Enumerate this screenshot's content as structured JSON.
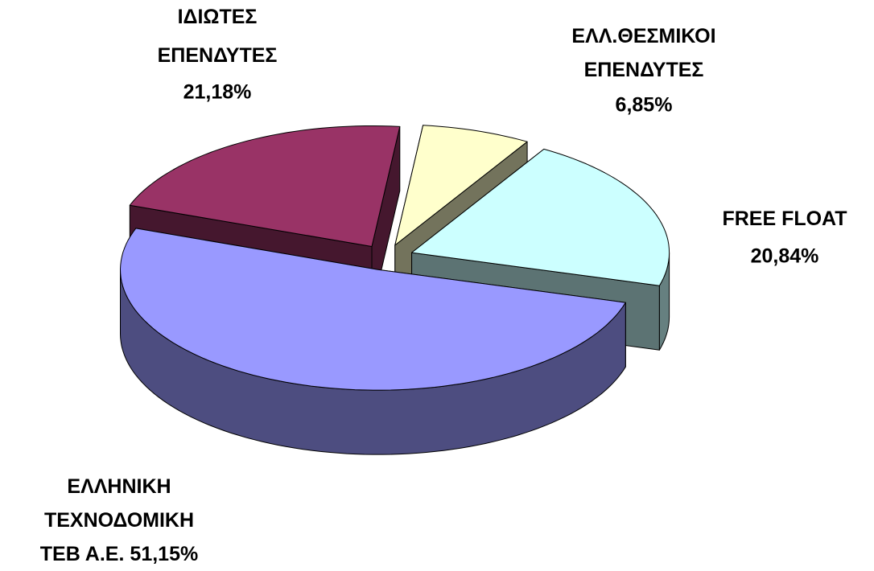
{
  "chart_data": {
    "type": "pie3d",
    "categories": [
      [
        "ΙΔΙΩΤΕΣ",
        "ΕΠΕΝΔΥΤΕΣ"
      ],
      [
        "ΕΛΛ.ΘΕΣΜΙΚΟΙ",
        "ΕΠΕΝΔΥΤΕΣ"
      ],
      [
        "FREE FLOAT"
      ],
      [
        "ΕΛΛΗΝΙΚΗ",
        "ΤΕΧΝΟΔΟΜΙΚΗ",
        "ΤΕΒ Α.Ε."
      ]
    ],
    "values": [
      21.18,
      6.85,
      20.84,
      51.15
    ],
    "value_labels": [
      "21,18%",
      "6,85%",
      "20,84%",
      "51,15%"
    ],
    "colors": [
      "#993366",
      "#ffffcc",
      "#ccffff",
      "#9999ff"
    ]
  }
}
